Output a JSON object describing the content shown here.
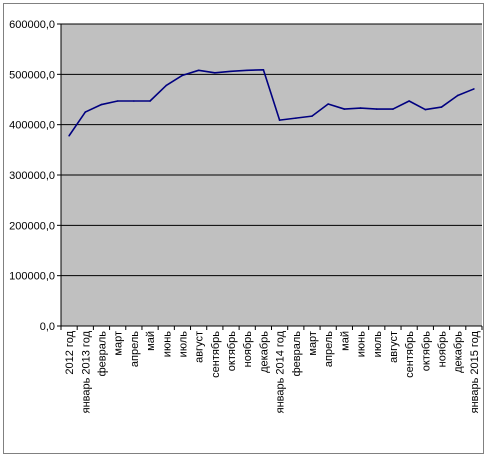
{
  "chart_data": {
    "type": "line",
    "title": "",
    "xlabel": "",
    "ylabel": "",
    "ylim": [
      0,
      600000
    ],
    "yticks": [
      "0,0",
      "100000,0",
      "200000,0",
      "300000,0",
      "400000,0",
      "500000,0",
      "600000,0"
    ],
    "grid": "horizontal",
    "legend": "none",
    "colors": {
      "plot_bg": "#c0c0c0",
      "line": "#000080",
      "grid": "#000000"
    },
    "categories": [
      "2012 год",
      "январь 2013 год",
      "февраль",
      "март",
      "апрель",
      "май",
      "июнь",
      "июль",
      "август",
      "сентябрь",
      "октябрь",
      "ноябрь",
      "декабрь",
      "январь 2014 год",
      "февраль",
      "март",
      "апрель",
      "май",
      "июнь",
      "июль",
      "август",
      "сентябрь",
      "октябрь",
      "ноябрь",
      "декабрь",
      "январь 2015 год"
    ],
    "series": [
      {
        "values": [
          378000,
          425000,
          440000,
          447000,
          447000,
          447000,
          478000,
          498000,
          508000,
          503000,
          506000,
          508000,
          509000,
          409000,
          413000,
          417000,
          441000,
          431000,
          433000,
          431000,
          431000,
          447000,
          430000,
          435000,
          458000,
          471000
        ]
      }
    ]
  }
}
